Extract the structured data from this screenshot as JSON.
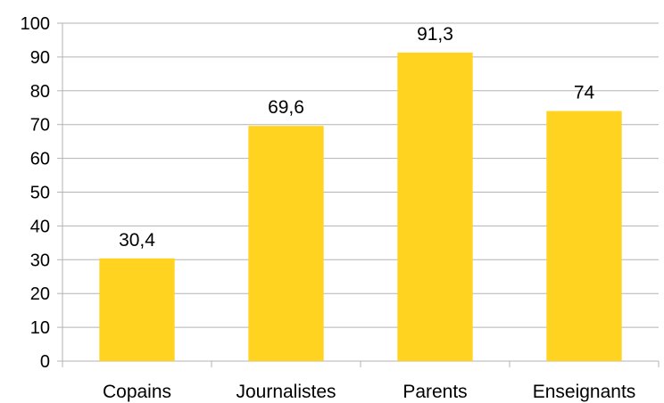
{
  "chart_data": {
    "type": "bar",
    "categories": [
      "Copains",
      "Journalistes",
      "Parents",
      "Enseignants"
    ],
    "values": [
      30.4,
      69.6,
      91.3,
      74
    ],
    "value_labels": [
      "30,4",
      "69,6",
      "91,3",
      "74"
    ],
    "ylim": [
      0,
      100
    ],
    "y_ticks": [
      0,
      10,
      20,
      30,
      40,
      50,
      60,
      70,
      80,
      90,
      100
    ],
    "grid": true,
    "legend": "none",
    "bar_color": "#FFD320",
    "grid_color": "#B3B3B3"
  }
}
